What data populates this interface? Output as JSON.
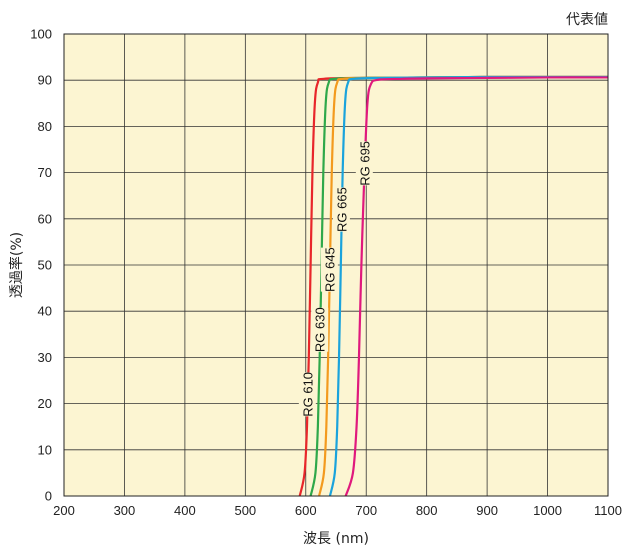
{
  "chart_data": {
    "type": "line",
    "note": "代表値",
    "xlabel": "波長 (nm)",
    "ylabel": "透過率(%)",
    "xlim": [
      200,
      1100
    ],
    "ylim": [
      0,
      100
    ],
    "xticks": [
      200,
      300,
      400,
      500,
      600,
      700,
      800,
      900,
      1000,
      1100
    ],
    "yticks": [
      0,
      10,
      20,
      30,
      40,
      50,
      60,
      70,
      80,
      90,
      100
    ],
    "grid": true,
    "background_color": "#fcf5d2",
    "series": [
      {
        "name": "RG 610",
        "color": "#e8262a",
        "label_y": 22,
        "x": [
          590,
          598,
          602,
          605,
          608,
          611,
          615,
          620,
          630,
          700,
          800,
          900,
          1000,
          1100
        ],
        "y": [
          0,
          5,
          15,
          30,
          50,
          70,
          85,
          89.5,
          90.3,
          90.5,
          90.6,
          90.7,
          90.7,
          90.7
        ]
      },
      {
        "name": "RG 630",
        "color": "#2fa84a",
        "label_y": 36,
        "x": [
          608,
          616,
          620,
          623,
          626,
          629,
          633,
          638,
          648,
          700,
          800,
          900,
          1000,
          1100
        ],
        "y": [
          0,
          5,
          15,
          30,
          50,
          70,
          85,
          89.5,
          90.3,
          90.5,
          90.6,
          90.7,
          90.7,
          90.7
        ]
      },
      {
        "name": "RG 645",
        "color": "#f39a1e",
        "label_y": 49,
        "x": [
          622,
          630,
          634,
          637,
          640,
          643,
          647,
          652,
          662,
          720,
          800,
          900,
          1000,
          1100
        ],
        "y": [
          0,
          5,
          15,
          30,
          50,
          70,
          85,
          89.5,
          90.3,
          90.5,
          90.6,
          90.7,
          90.7,
          90.7
        ]
      },
      {
        "name": "RG 665",
        "color": "#1aa3dc",
        "label_y": 62,
        "x": [
          640,
          648,
          652,
          655,
          658,
          661,
          665,
          670,
          680,
          730,
          800,
          900,
          1000,
          1100
        ],
        "y": [
          0,
          5,
          15,
          30,
          50,
          70,
          85,
          89.5,
          90.3,
          90.5,
          90.6,
          90.7,
          90.7,
          90.7
        ]
      },
      {
        "name": "RG 695",
        "color": "#e0197d",
        "label_y": 72,
        "x": [
          666,
          678,
          684,
          688,
          692,
          697,
          702,
          708,
          720,
          760,
          800,
          900,
          1000,
          1100
        ],
        "y": [
          0,
          5,
          15,
          30,
          50,
          70,
          85,
          89.2,
          90.1,
          90.3,
          90.4,
          90.5,
          90.6,
          90.6
        ]
      }
    ]
  }
}
